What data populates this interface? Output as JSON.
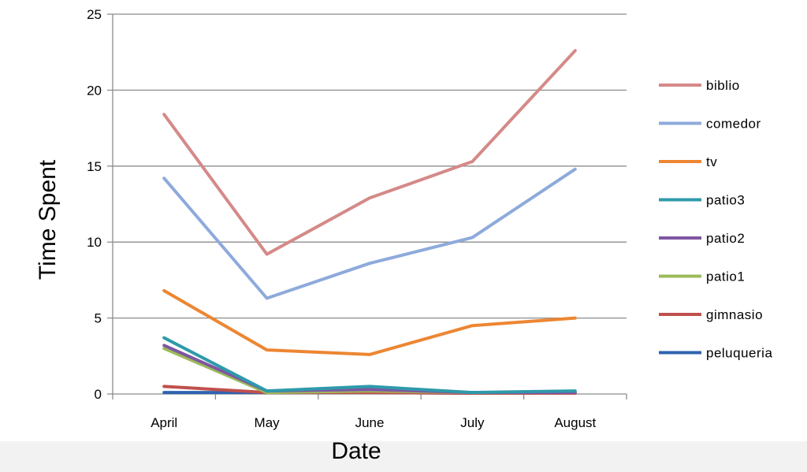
{
  "chart_data": {
    "type": "line",
    "title": "",
    "xlabel": "Date",
    "ylabel": "Time Spent",
    "categories": [
      "April",
      "May",
      "June",
      "July",
      "August"
    ],
    "ylim": [
      0,
      25
    ],
    "yticks": [
      0,
      5,
      10,
      15,
      20,
      25
    ],
    "grid": true,
    "legend_position": "right",
    "series": [
      {
        "name": "biblio",
        "color": "#d48a88",
        "values": [
          18.4,
          9.2,
          12.9,
          15.3,
          22.6
        ]
      },
      {
        "name": "comedor",
        "color": "#8eaadb",
        "values": [
          14.2,
          6.3,
          8.6,
          10.3,
          14.8
        ]
      },
      {
        "name": "tv",
        "color": "#ed8632",
        "values": [
          6.8,
          2.9,
          2.6,
          4.5,
          5.0
        ]
      },
      {
        "name": "patio3",
        "color": "#2e9aaa",
        "values": [
          3.7,
          0.2,
          0.5,
          0.1,
          0.2
        ]
      },
      {
        "name": "patio2",
        "color": "#7e56a2",
        "values": [
          3.2,
          0.2,
          0.3,
          0.1,
          0.1
        ]
      },
      {
        "name": "patio1",
        "color": "#9bbb59",
        "values": [
          3.0,
          0.1,
          0.2,
          0.1,
          0.1
        ]
      },
      {
        "name": "gimnasio",
        "color": "#c0504d",
        "values": [
          0.5,
          0.1,
          0.1,
          0.05,
          0.05
        ]
      },
      {
        "name": "peluqueria",
        "color": "#2f63b0",
        "values": [
          0.1,
          0.1,
          0.1,
          0.05,
          0.05
        ]
      }
    ]
  }
}
